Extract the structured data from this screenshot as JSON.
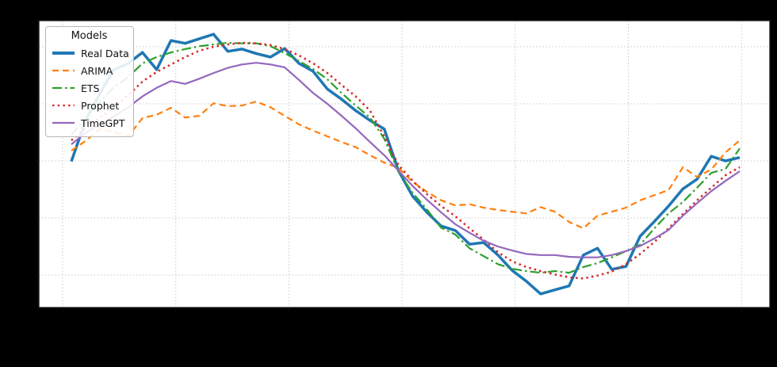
{
  "figure": {
    "background_color": "#000000",
    "plot_background_color": "#ffffff",
    "note": "axis tick labels and title are not visible (rendered black on black background)"
  },
  "legend": {
    "title": "Models",
    "entries": [
      {
        "label": "Real Data",
        "color": "#1f77b4",
        "line_style": "solid",
        "line_width": 3.5
      },
      {
        "label": "ARIMA",
        "color": "#ff7f0e",
        "line_style": "dashed",
        "line_width": 2.2
      },
      {
        "label": "ETS",
        "color": "#2ca02c",
        "line_style": "dashdot",
        "line_width": 2.2
      },
      {
        "label": "Prophet",
        "color": "#d62728",
        "line_style": "dotted",
        "line_width": 2.5
      },
      {
        "label": "TimeGPT",
        "color": "#9467bd",
        "line_style": "solid",
        "line_width": 2.2
      }
    ]
  },
  "chart_data": {
    "type": "line",
    "title": "",
    "xlabel": "",
    "ylabel": "",
    "x_tick_labels_visible": false,
    "y_tick_labels_visible": false,
    "grid": true,
    "legend_position": "upper left",
    "x": [
      1,
      2,
      3,
      4,
      5,
      6,
      7,
      8,
      9,
      10,
      11,
      12,
      13,
      14,
      15,
      16,
      17,
      18,
      19,
      20,
      21,
      22,
      23,
      24,
      25,
      26,
      27,
      28,
      29,
      30,
      31,
      32,
      33,
      34,
      35,
      36,
      37,
      38,
      39,
      40,
      41,
      42,
      43,
      44,
      45,
      46,
      47,
      48
    ],
    "ylim": [
      -15.7,
      34.6
    ],
    "y_gridline_values": [
      30,
      20,
      10,
      0,
      -10
    ],
    "series": [
      {
        "name": "Real Data",
        "color": "#1f77b4",
        "line_style": "solid",
        "line_width": 3.5,
        "values": [
          9.9,
          17.1,
          21.8,
          26.0,
          27.1,
          29.0,
          26.0,
          31.1,
          30.6,
          31.4,
          32.2,
          29.2,
          29.6,
          28.8,
          28.2,
          29.7,
          27.1,
          25.7,
          22.6,
          20.8,
          18.8,
          17.1,
          15.6,
          8.3,
          3.8,
          1.0,
          -1.4,
          -2.2,
          -4.6,
          -4.3,
          -6.5,
          -9.2,
          -11.1,
          -13.3,
          -12.6,
          -11.9,
          -6.5,
          -5.3,
          -9.0,
          -8.5,
          -3.2,
          -0.6,
          2.1,
          5.1,
          6.8,
          10.8,
          10.0,
          10.6
        ]
      },
      {
        "name": "ARIMA",
        "color": "#ff7f0e",
        "line_style": "dashed",
        "line_width": 2.2,
        "values": [
          11.8,
          13.5,
          15.6,
          15.0,
          14.3,
          17.5,
          18.1,
          19.3,
          17.6,
          17.9,
          20.1,
          19.6,
          19.7,
          20.4,
          19.4,
          17.9,
          16.4,
          15.3,
          14.3,
          13.3,
          12.4,
          11.0,
          9.7,
          8.8,
          6.3,
          4.6,
          3.1,
          2.2,
          2.4,
          1.8,
          1.4,
          1.1,
          0.8,
          1.9,
          1.1,
          -0.7,
          -1.8,
          0.4,
          1.1,
          1.8,
          3.1,
          4.0,
          4.9,
          8.9,
          7.2,
          8.5,
          11.5,
          13.6
        ]
      },
      {
        "name": "ETS",
        "color": "#2ca02c",
        "line_style": "dashdot",
        "line_width": 2.2,
        "values": [
          14.6,
          17.4,
          20.4,
          22.9,
          24.7,
          27.1,
          28.2,
          29.0,
          29.6,
          30.1,
          30.4,
          30.7,
          30.6,
          30.6,
          30.1,
          28.9,
          27.5,
          26.1,
          24.3,
          21.9,
          19.7,
          17.6,
          13.9,
          8.1,
          4.4,
          1.5,
          -1.7,
          -2.9,
          -5.3,
          -6.7,
          -8.1,
          -8.9,
          -9.3,
          -9.6,
          -9.3,
          -9.6,
          -8.6,
          -7.9,
          -6.9,
          -5.8,
          -4.7,
          -1.8,
          0.8,
          2.8,
          5.3,
          7.9,
          8.6,
          12.2
        ]
      },
      {
        "name": "Prophet",
        "color": "#d62728",
        "line_style": "dotted",
        "line_width": 2.5,
        "values": [
          13.6,
          15.7,
          17.6,
          19.4,
          21.5,
          23.9,
          25.6,
          26.9,
          28.2,
          29.3,
          30.0,
          30.4,
          30.7,
          30.6,
          30.3,
          29.6,
          28.5,
          27.1,
          25.4,
          23.3,
          21.3,
          18.8,
          14.3,
          9.3,
          6.5,
          4.2,
          2.1,
          0.3,
          -1.8,
          -3.8,
          -6.0,
          -7.6,
          -8.6,
          -9.3,
          -9.9,
          -10.4,
          -10.6,
          -10.1,
          -9.4,
          -8.1,
          -6.3,
          -4.2,
          -1.8,
          0.7,
          3.1,
          5.3,
          7.5,
          8.9
        ]
      },
      {
        "name": "TimeGPT",
        "color": "#9467bd",
        "line_style": "solid",
        "line_width": 2.2,
        "values": [
          12.9,
          14.9,
          16.4,
          17.8,
          19.4,
          21.3,
          22.8,
          24.0,
          23.5,
          24.4,
          25.4,
          26.3,
          26.9,
          27.2,
          26.9,
          26.4,
          24.2,
          21.9,
          20.0,
          17.9,
          15.7,
          13.3,
          11.0,
          8.3,
          5.6,
          3.2,
          1.0,
          -1.1,
          -2.6,
          -4.0,
          -5.0,
          -5.7,
          -6.3,
          -6.5,
          -6.5,
          -6.8,
          -6.9,
          -6.9,
          -6.5,
          -5.8,
          -4.9,
          -3.6,
          -2.1,
          0.4,
          2.6,
          4.7,
          6.5,
          8.2
        ]
      }
    ]
  }
}
